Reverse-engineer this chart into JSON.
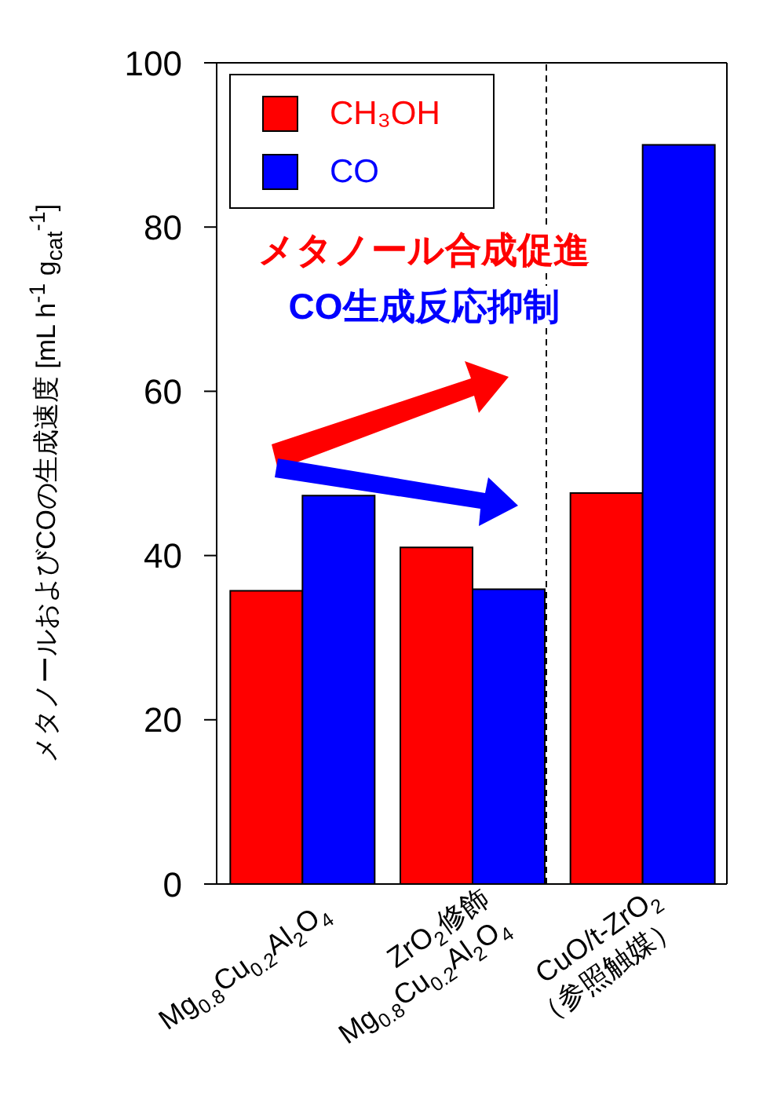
{
  "chart_data": {
    "type": "bar",
    "ylabel": "メタノールおよびCOの生成速度 [mL h$^{-1}$ g$_{cat}$$^{-1}$]",
    "categories": [
      "Mg$_{0.8}$Cu$_{0.2}$Al$_{2}$O$_{4}$",
      "ZrO$_{2}$修飾\nMg$_{0.8}$Cu$_{0.2}$Al$_{2}$O$_{4}$",
      "CuO/t-ZrO$_{2}$\n（参照触媒）"
    ],
    "series": [
      {
        "name": "CH₃OH",
        "color": "#ff0000",
        "values": [
          35.7,
          41.0,
          47.6
        ]
      },
      {
        "name": "CO",
        "color": "#0000ff",
        "values": [
          47.3,
          35.9,
          90.0
        ]
      }
    ],
    "ylim": [
      0,
      100
    ],
    "yticks": [
      0,
      20,
      40,
      60,
      80,
      100
    ],
    "legend": "top left",
    "annotations": [
      "メタノール合成促進",
      "CO生成反応抑制"
    ]
  }
}
